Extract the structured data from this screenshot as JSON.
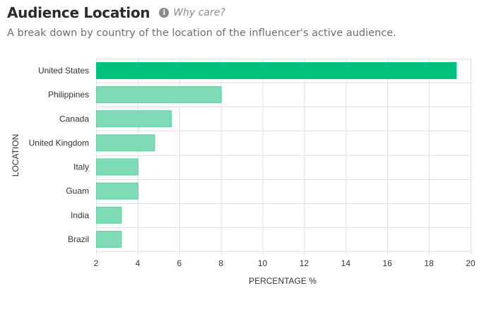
{
  "header": {
    "title": "Audience Location",
    "info_icon_glyph": "i",
    "why_care": "Why care?",
    "subtitle": "A break down by country of the location of the influencer's active audience."
  },
  "colors": {
    "primary_bar": "#00c27d",
    "secondary_bar": "#7fdbb6",
    "secondary_bar_stroke": "#5fcfa2",
    "grid": "#e0e0e0"
  },
  "chart_data": {
    "type": "bar",
    "orientation": "horizontal",
    "title": "",
    "xlabel": "PERCENTAGE %",
    "ylabel": "LOCATION",
    "xlim": [
      2,
      20
    ],
    "xticks": [
      2,
      4,
      6,
      8,
      10,
      12,
      14,
      16,
      18,
      20
    ],
    "grid": true,
    "categories": [
      "United States",
      "Philippines",
      "Canada",
      "United Kingdom",
      "Italy",
      "Guam",
      "India",
      "Brazil"
    ],
    "values": [
      19.3,
      8.0,
      5.6,
      4.8,
      4.0,
      4.0,
      3.2,
      3.2
    ]
  }
}
